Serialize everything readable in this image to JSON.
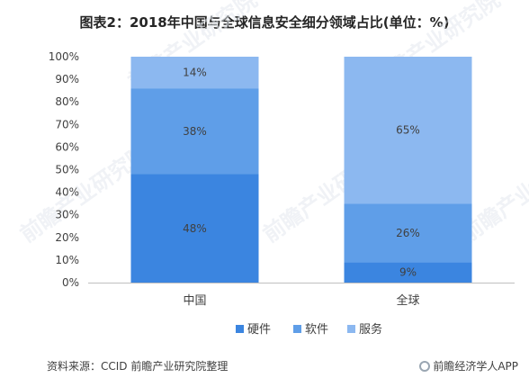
{
  "title": "图表2：2018年中国与全球信息安全细分领域占比(单位：%)",
  "source": "资料来源：CCID 前瞻产业研究院整理",
  "brand": "前瞻经济学人APP",
  "watermark": "前瞻产业研究院",
  "chart_data": {
    "type": "bar",
    "stacked": true,
    "categories": [
      "中国",
      "全球"
    ],
    "series": [
      {
        "name": "硬件",
        "values": [
          48,
          9
        ],
        "labels": [
          "48%",
          "9%"
        ],
        "color": "#3b85e0"
      },
      {
        "name": "软件",
        "values": [
          38,
          26
        ],
        "labels": [
          "38%",
          "26%"
        ],
        "color": "#5f9ee8"
      },
      {
        "name": "服务",
        "values": [
          14,
          65
        ],
        "labels": [
          "14%",
          "65%"
        ],
        "color": "#8cb8f0"
      }
    ],
    "y_ticks": [
      "0%",
      "10%",
      "20%",
      "30%",
      "40%",
      "50%",
      "60%",
      "70%",
      "80%",
      "90%",
      "100%"
    ],
    "ylim": [
      0,
      100
    ],
    "legend_position": "bottom",
    "grid": false
  }
}
